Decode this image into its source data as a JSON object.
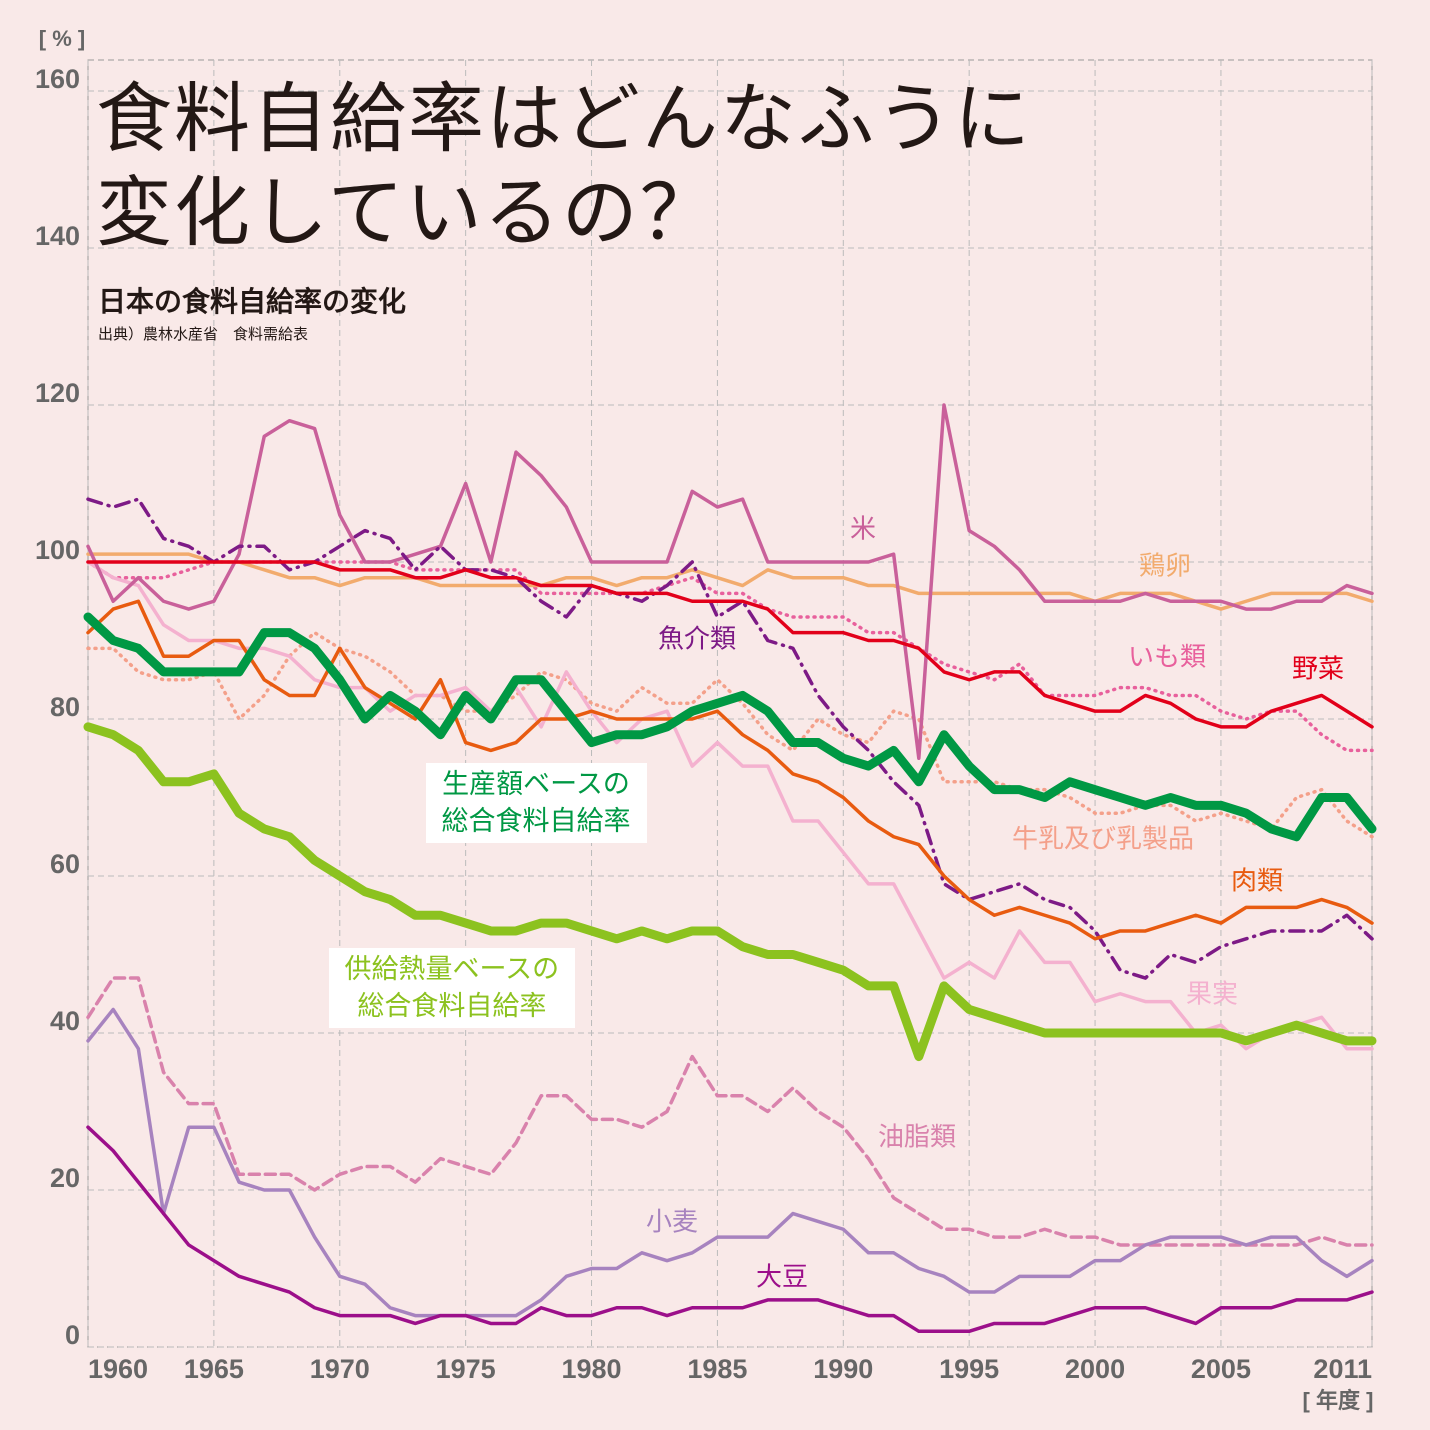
{
  "chart_data": {
    "type": "line",
    "title": "食料自給率はどんなふうに\n変化しているの？",
    "subtitle": "日本の食料自給率の変化",
    "source": "出典）農林水産省　食料需給表",
    "y_label": "[ % ]",
    "x_label": "[ 年度 ]",
    "xlim": [
      1960,
      2011
    ],
    "xticks": [
      1960,
      1965,
      1970,
      1975,
      1980,
      1985,
      1990,
      1995,
      2000,
      2005,
      2011
    ],
    "ylim": [
      0,
      160
    ],
    "yticks": [
      0,
      20,
      40,
      60,
      80,
      100,
      120,
      140,
      160
    ],
    "grid": true,
    "x": [
      1960,
      1961,
      1962,
      1963,
      1964,
      1965,
      1966,
      1967,
      1968,
      1969,
      1970,
      1971,
      1972,
      1973,
      1974,
      1975,
      1976,
      1977,
      1978,
      1979,
      1980,
      1981,
      1982,
      1983,
      1984,
      1985,
      1986,
      1987,
      1988,
      1989,
      1990,
      1991,
      1992,
      1993,
      1994,
      1995,
      1996,
      1997,
      1998,
      1999,
      2000,
      2001,
      2002,
      2003,
      2004,
      2005,
      2006,
      2007,
      2008,
      2009,
      2010,
      2011
    ],
    "series": [
      {
        "name": "油脂類",
        "color": "#d982ac",
        "style": "dashed",
        "values": [
          42,
          47,
          47,
          35,
          31,
          31,
          22,
          22,
          22,
          20,
          22,
          23,
          23,
          21,
          24,
          23,
          22,
          26,
          32,
          32,
          29,
          29,
          28,
          30,
          37,
          32,
          32,
          30,
          33,
          30,
          28,
          24,
          19,
          17,
          15,
          15,
          14,
          14,
          15,
          14,
          14,
          13,
          13,
          13,
          13,
          13,
          13,
          13,
          13,
          14,
          13,
          13
        ]
      },
      {
        "name": "牛乳及び乳製品",
        "color": "#f4a08a",
        "style": "dotted",
        "values": [
          89,
          89,
          86,
          85,
          85,
          86,
          80,
          83,
          88,
          91,
          89,
          88,
          86,
          83,
          83,
          81,
          81,
          83,
          86,
          85,
          82,
          81,
          84,
          82,
          82,
          85,
          82,
          78,
          76,
          80,
          78,
          77,
          81,
          80,
          72,
          72,
          72,
          71,
          71,
          70,
          68,
          68,
          69,
          69,
          67,
          68,
          67,
          66,
          70,
          71,
          67,
          65
        ]
      },
      {
        "name": "いも類",
        "color": "#e8609c",
        "style": "dotted",
        "values": [
          100,
          98,
          98,
          98,
          99,
          100,
          100,
          100,
          100,
          100,
          100,
          100,
          100,
          99,
          99,
          99,
          99,
          99,
          96,
          96,
          96,
          96,
          96,
          97,
          98,
          96,
          96,
          94,
          93,
          93,
          93,
          91,
          91,
          89,
          87,
          86,
          85,
          87,
          83,
          83,
          83,
          84,
          84,
          83,
          83,
          81,
          80,
          81,
          81,
          78,
          76,
          76
        ]
      },
      {
        "name": "果実",
        "color": "#f4b1cf",
        "style": "solid",
        "values": [
          100,
          98,
          97,
          92,
          90,
          90,
          89,
          89,
          88,
          85,
          84,
          84,
          81,
          83,
          83,
          84,
          81,
          84,
          79,
          86,
          81,
          77,
          80,
          81,
          74,
          77,
          74,
          74,
          67,
          67,
          63,
          59,
          59,
          53,
          47,
          49,
          47,
          53,
          49,
          49,
          44,
          45,
          44,
          44,
          40,
          41,
          38,
          40,
          41,
          42,
          38,
          38
        ]
      },
      {
        "name": "鶏卵",
        "color": "#f2ab6d",
        "style": "solid",
        "values": [
          101,
          101,
          101,
          101,
          101,
          100,
          100,
          99,
          98,
          98,
          97,
          98,
          98,
          98,
          97,
          97,
          97,
          97,
          97,
          98,
          98,
          97,
          98,
          98,
          99,
          98,
          97,
          99,
          98,
          98,
          98,
          97,
          97,
          96,
          96,
          96,
          96,
          96,
          96,
          96,
          95,
          96,
          96,
          96,
          95,
          94,
          95,
          96,
          96,
          96,
          96,
          95
        ]
      },
      {
        "name": "米",
        "color": "#c9609a",
        "style": "solid",
        "values": [
          102,
          95,
          98,
          95,
          94,
          95,
          101,
          116,
          118,
          117,
          106,
          100,
          100,
          101,
          102,
          110,
          100,
          114,
          111,
          107,
          100,
          100,
          100,
          100,
          109,
          107,
          108,
          100,
          100,
          100,
          100,
          100,
          101,
          75,
          120,
          104,
          102,
          99,
          95,
          95,
          95,
          95,
          96,
          95,
          95,
          95,
          94,
          94,
          95,
          95,
          97,
          96
        ]
      },
      {
        "name": "魚介類",
        "color": "#7d1a86",
        "style": "dashdot",
        "values": [
          108,
          107,
          108,
          103,
          102,
          100,
          102,
          102,
          99,
          100,
          102,
          104,
          103,
          99,
          102,
          99,
          99,
          98,
          95,
          93,
          97,
          96,
          95,
          97,
          100,
          93,
          95,
          90,
          89,
          83,
          79,
          76,
          72,
          69,
          59,
          57,
          58,
          59,
          57,
          56,
          53,
          48,
          47,
          50,
          49,
          51,
          52,
          53,
          53,
          53,
          55,
          52
        ]
      },
      {
        "name": "野菜",
        "color": "#e2001a",
        "style": "solid",
        "values": [
          100,
          100,
          100,
          100,
          100,
          100,
          100,
          100,
          100,
          100,
          99,
          99,
          99,
          98,
          98,
          99,
          98,
          98,
          97,
          97,
          97,
          96,
          96,
          96,
          95,
          95,
          95,
          94,
          91,
          91,
          91,
          90,
          90,
          89,
          86,
          85,
          86,
          86,
          83,
          82,
          81,
          81,
          83,
          82,
          80,
          79,
          79,
          81,
          82,
          83,
          81,
          79
        ]
      },
      {
        "name": "肉類",
        "color": "#e85b10",
        "style": "solid",
        "values": [
          91,
          94,
          95,
          88,
          88,
          90,
          90,
          85,
          83,
          83,
          89,
          84,
          82,
          80,
          85,
          77,
          76,
          77,
          80,
          80,
          81,
          80,
          80,
          80,
          80,
          81,
          78,
          76,
          73,
          72,
          70,
          67,
          65,
          64,
          60,
          57,
          55,
          56,
          55,
          54,
          52,
          53,
          53,
          54,
          55,
          54,
          56,
          56,
          56,
          57,
          56,
          54
        ]
      },
      {
        "name": "小麦",
        "color": "#a783bf",
        "style": "solid",
        "values": [
          39,
          43,
          38,
          17,
          28,
          28,
          21,
          20,
          20,
          14,
          9,
          8,
          5,
          4,
          4,
          4,
          4,
          4,
          6,
          9,
          10,
          10,
          12,
          11,
          12,
          14,
          14,
          14,
          17,
          16,
          15,
          12,
          12,
          10,
          9,
          7,
          7,
          9,
          9,
          9,
          11,
          11,
          13,
          14,
          14,
          14,
          13,
          14,
          14,
          11,
          9,
          11
        ]
      },
      {
        "name": "大豆",
        "color": "#9c0f8a",
        "style": "solid",
        "values": [
          28,
          25,
          21,
          17,
          13,
          11,
          9,
          8,
          7,
          5,
          4,
          4,
          4,
          3,
          4,
          4,
          3,
          3,
          5,
          4,
          4,
          5,
          5,
          4,
          5,
          5,
          5,
          6,
          6,
          6,
          5,
          4,
          4,
          2,
          2,
          2,
          3,
          3,
          3,
          4,
          5,
          5,
          5,
          4,
          3,
          5,
          5,
          5,
          6,
          6,
          6,
          7
        ]
      },
      {
        "name": "供給熱量ベースの\n総合食料自給率",
        "color": "#8cc21f",
        "style": "thick",
        "values": [
          79,
          78,
          76,
          72,
          72,
          73,
          68,
          66,
          65,
          62,
          60,
          58,
          57,
          55,
          55,
          54,
          53,
          53,
          54,
          54,
          53,
          52,
          53,
          52,
          53,
          53,
          51,
          50,
          50,
          49,
          48,
          46,
          46,
          37,
          46,
          43,
          42,
          41,
          40,
          40,
          40,
          40,
          40,
          40,
          40,
          40,
          39,
          40,
          41,
          40,
          39,
          39
        ]
      },
      {
        "name": "生産額ベースの\n総合食料自給率",
        "color": "#009844",
        "style": "thick",
        "values": [
          93,
          90,
          89,
          86,
          86,
          86,
          86,
          91,
          91,
          89,
          85,
          80,
          83,
          81,
          78,
          83,
          80,
          85,
          85,
          81,
          77,
          78,
          78,
          79,
          81,
          82,
          83,
          81,
          77,
          77,
          75,
          74,
          76,
          72,
          78,
          74,
          71,
          71,
          70,
          72,
          71,
          70,
          69,
          70,
          69,
          69,
          68,
          66,
          65,
          70,
          70,
          66
        ]
      }
    ]
  }
}
